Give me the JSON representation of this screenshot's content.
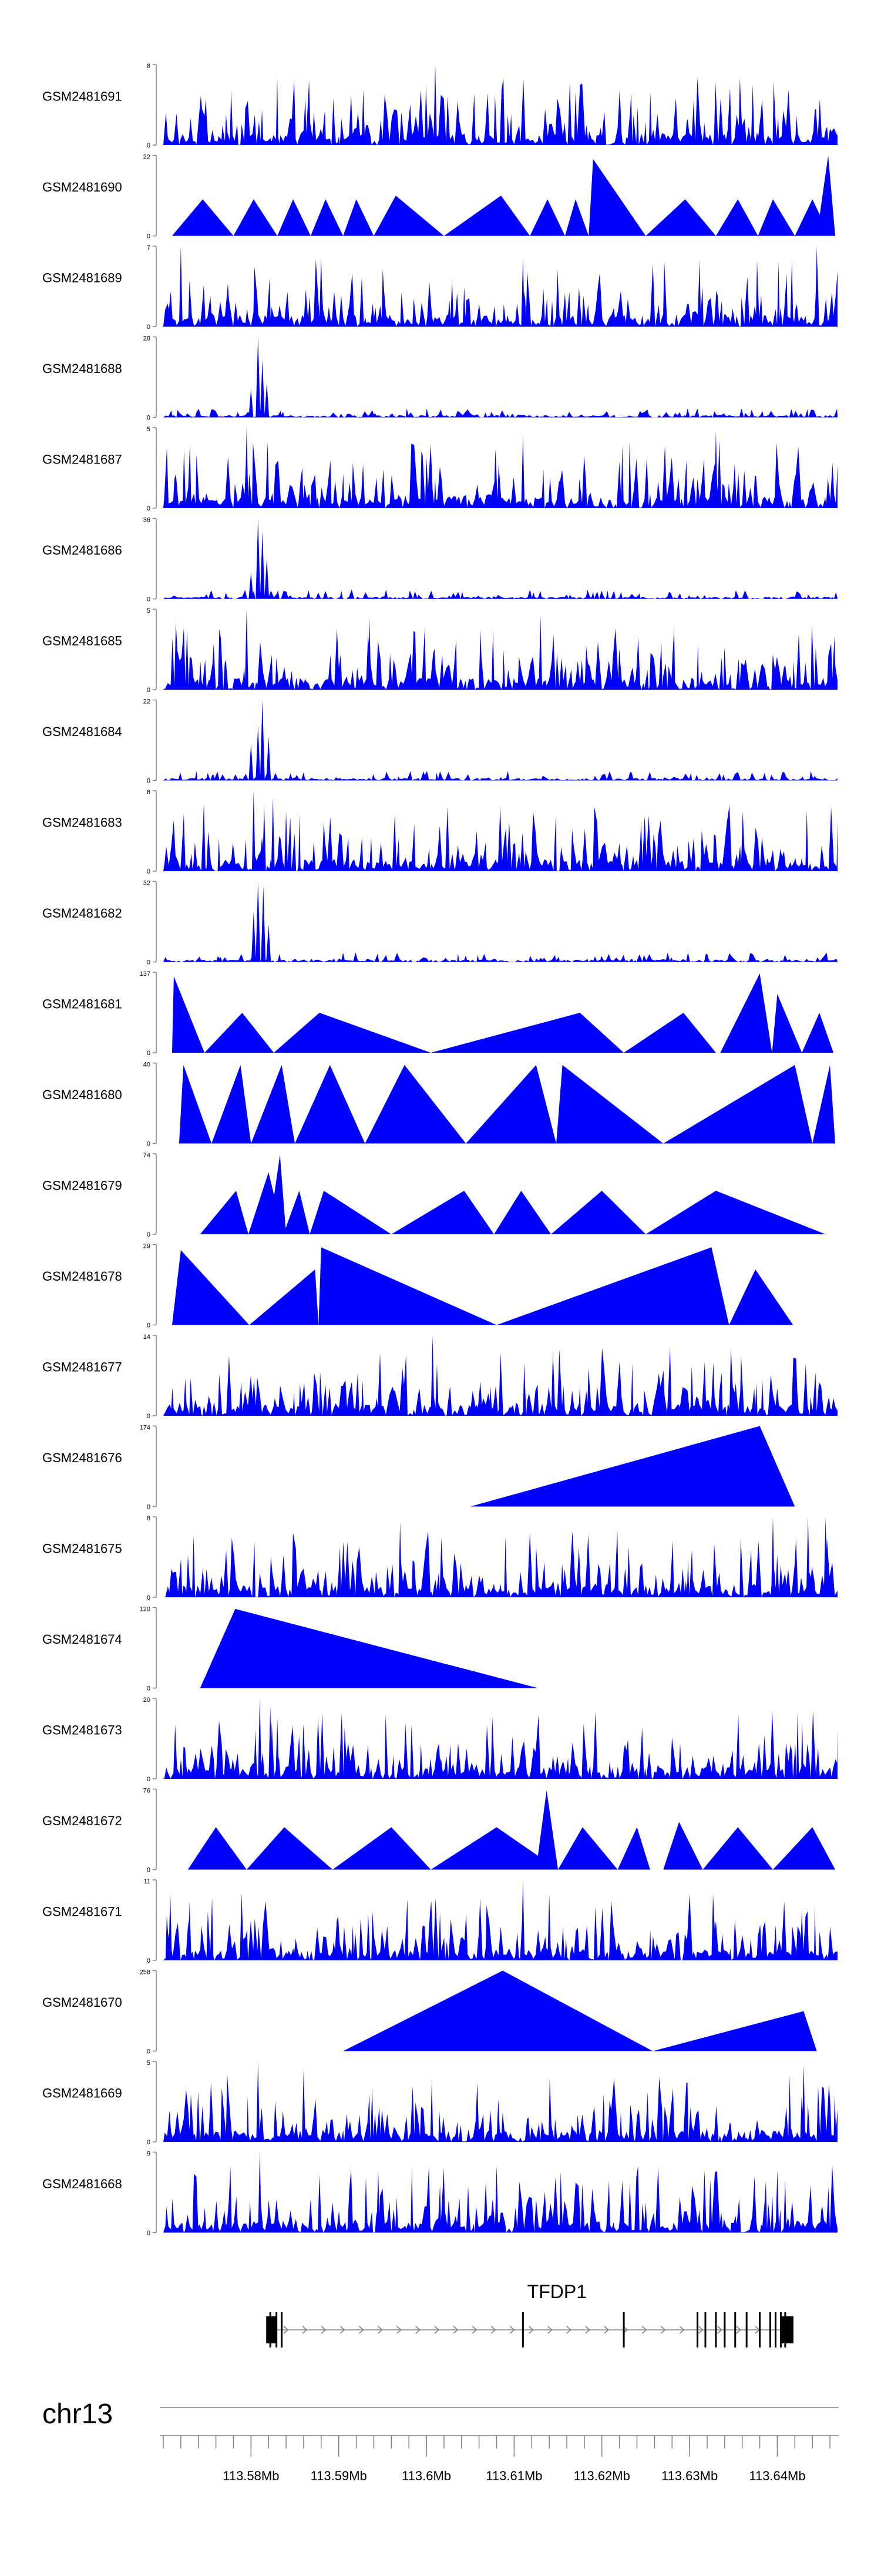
{
  "chart_data": {
    "type": "area",
    "title": "",
    "chromosome": "chr13",
    "gene": {
      "name": "TFDP1",
      "start_mb": 113.5823,
      "end_mb": 113.6415,
      "exons_mb": [
        113.5822,
        113.5829,
        113.5835,
        113.611,
        113.6225,
        113.6309,
        113.6318,
        113.633,
        113.634,
        113.6352,
        113.6365,
        113.638,
        113.6392,
        113.6398,
        113.6404,
        113.6409
      ]
    },
    "x_axis": {
      "range_mb": [
        113.57,
        113.647
      ],
      "ticks_mb": [
        113.58,
        113.59,
        113.6,
        113.61,
        113.62,
        113.63,
        113.64
      ],
      "tick_labels": [
        "113.58Mb",
        "113.59Mb",
        "113.6Mb",
        "113.61Mb",
        "113.62Mb",
        "113.63Mb",
        "113.64Mb"
      ],
      "minor_tick_step_mb": 0.002
    },
    "tracks": [
      {
        "name": "GSM2481691",
        "ymax": 8,
        "ymax_label": "8",
        "ymin_label": "0",
        "pattern": "dense",
        "peaks": [
          [
            113.601,
            8
          ],
          [
            113.5928,
            5.5
          ],
          [
            113.6372,
            6
          ]
        ]
      },
      {
        "name": "GSM2481690",
        "ymax": 22,
        "ymax_label": "22",
        "ymin_label": "0",
        "pattern": "triangles",
        "triangles": [
          [
            113.571,
            113.5745,
            113.578,
            10
          ],
          [
            113.578,
            113.5803,
            113.583,
            10
          ],
          [
            113.583,
            113.5848,
            113.5868,
            10
          ],
          [
            113.5868,
            113.5885,
            113.5905,
            10
          ],
          [
            113.5905,
            113.592,
            113.594,
            10
          ],
          [
            113.594,
            113.5965,
            113.602,
            11
          ],
          [
            113.602,
            113.6085,
            113.6118,
            11
          ],
          [
            113.6118,
            113.6138,
            113.6158,
            10
          ],
          [
            113.6158,
            113.617,
            113.6185,
            10
          ],
          [
            113.6185,
            113.619,
            113.625,
            21
          ],
          [
            113.625,
            113.6295,
            113.633,
            10
          ],
          [
            113.633,
            113.6355,
            113.6378,
            10
          ],
          [
            113.6378,
            113.6395,
            113.642,
            10
          ],
          [
            113.642,
            113.644,
            113.646,
            10
          ],
          [
            113.6445,
            113.6458,
            113.6466,
            22
          ]
        ]
      },
      {
        "name": "GSM2481689",
        "ymax": 7,
        "ymax_label": "7",
        "ymin_label": "0",
        "pattern": "dense",
        "peaks": [
          [
            113.572,
            7
          ],
          [
            113.588,
            6
          ],
          [
            113.611,
            6
          ],
          [
            113.6445,
            7
          ]
        ]
      },
      {
        "name": "GSM2481688",
        "ymax": 28,
        "ymax_label": "28",
        "ymin_label": "0",
        "pattern": "sparse",
        "peaks": [
          [
            113.5808,
            28
          ],
          [
            113.5813,
            20
          ],
          [
            113.5818,
            12
          ],
          [
            113.58,
            10
          ]
        ]
      },
      {
        "name": "GSM2481687",
        "ymax": 5,
        "ymax_label": "5",
        "ymin_label": "0",
        "pattern": "dense",
        "peaks": [
          [
            113.5795,
            5
          ],
          [
            113.611,
            4.5
          ],
          [
            113.633,
            4.8
          ]
        ]
      },
      {
        "name": "GSM2481686",
        "ymax": 36,
        "ymax_label": "36",
        "ymin_label": "0",
        "pattern": "sparse",
        "peaks": [
          [
            113.5808,
            36
          ],
          [
            113.5813,
            30
          ],
          [
            113.5818,
            18
          ],
          [
            113.58,
            12
          ]
        ]
      },
      {
        "name": "GSM2481685",
        "ymax": 5,
        "ymax_label": "5",
        "ymin_label": "0",
        "pattern": "dense",
        "peaks": [
          [
            113.5795,
            5
          ],
          [
            113.5935,
            4.5
          ],
          [
            113.613,
            4.6
          ]
        ]
      },
      {
        "name": "GSM2481684",
        "ymax": 22,
        "ymax_label": "22",
        "ymin_label": "0",
        "pattern": "sparse",
        "peaks": [
          [
            113.5813,
            22
          ],
          [
            113.5808,
            15
          ],
          [
            113.582,
            12
          ],
          [
            113.58,
            10
          ]
        ]
      },
      {
        "name": "GSM2481683",
        "ymax": 6,
        "ymax_label": "6",
        "ymin_label": "0",
        "pattern": "dense",
        "peaks": [
          [
            113.5803,
            6
          ],
          [
            113.5815,
            5
          ],
          [
            113.5825,
            5.5
          ],
          [
            113.584,
            4.5
          ]
        ]
      },
      {
        "name": "GSM2481682",
        "ymax": 32,
        "ymax_label": "32",
        "ymin_label": "0",
        "pattern": "sparse",
        "peaks": [
          [
            113.5808,
            32
          ],
          [
            113.5814,
            30
          ],
          [
            113.5803,
            20
          ],
          [
            113.582,
            15
          ]
        ]
      },
      {
        "name": "GSM2481681",
        "ymax": 137,
        "ymax_label": "137",
        "ymin_label": "0",
        "pattern": "triangles",
        "triangles": [
          [
            113.571,
            113.5712,
            113.5747,
            130
          ],
          [
            113.5747,
            113.579,
            113.5826,
            68
          ],
          [
            113.5826,
            113.5878,
            113.6005,
            68
          ],
          [
            113.6005,
            113.6175,
            113.6225,
            68
          ],
          [
            113.6225,
            113.6293,
            113.633,
            68
          ],
          [
            113.6335,
            113.638,
            113.6394,
            135
          ],
          [
            113.6394,
            113.64,
            113.6428,
            100
          ],
          [
            113.6428,
            113.6448,
            113.6464,
            68
          ]
        ]
      },
      {
        "name": "GSM2481680",
        "ymax": 40,
        "ymax_label": "40",
        "ymin_label": "0",
        "pattern": "triangles",
        "triangles": [
          [
            113.5718,
            113.5723,
            113.5755,
            39
          ],
          [
            113.5755,
            113.5788,
            113.58,
            39
          ],
          [
            113.58,
            113.5835,
            113.585,
            39
          ],
          [
            113.585,
            113.589,
            113.593,
            39
          ],
          [
            113.593,
            113.5975,
            113.6045,
            39
          ],
          [
            113.6045,
            113.6125,
            113.6148,
            39
          ],
          [
            113.6148,
            113.6155,
            113.627,
            39
          ],
          [
            113.627,
            113.642,
            113.644,
            39
          ],
          [
            113.644,
            113.646,
            113.6466,
            39
          ]
        ]
      },
      {
        "name": "GSM2481679",
        "ymax": 74,
        "ymax_label": "74",
        "ymin_label": "0",
        "pattern": "triangles",
        "triangles": [
          [
            113.5742,
            113.5783,
            113.5797,
            40
          ],
          [
            113.5797,
            113.582,
            113.5837,
            57
          ],
          [
            113.582,
            113.5833,
            113.584,
            73
          ],
          [
            113.5837,
            113.5855,
            113.5867,
            40
          ],
          [
            113.5867,
            113.5883,
            113.596,
            40
          ],
          [
            113.596,
            113.6043,
            113.6077,
            40
          ],
          [
            113.6077,
            113.6108,
            113.6142,
            40
          ],
          [
            113.6142,
            113.62,
            113.625,
            40
          ],
          [
            113.625,
            113.633,
            113.6455,
            40
          ]
        ]
      },
      {
        "name": "GSM2481678",
        "ymax": 29,
        "ymax_label": "29",
        "ymin_label": "0",
        "pattern": "triangles",
        "triangles": [
          [
            113.571,
            113.572,
            113.5798,
            27
          ],
          [
            113.5798,
            113.5873,
            113.5877,
            20
          ],
          [
            113.5877,
            113.588,
            113.608,
            28
          ],
          [
            113.608,
            113.6325,
            113.6345,
            28
          ],
          [
            113.6345,
            113.6375,
            113.6418,
            20
          ]
        ]
      },
      {
        "name": "GSM2481677",
        "ymax": 14,
        "ymax_label": "14",
        "ymin_label": "0",
        "pattern": "dense",
        "peaks": [
          [
            113.6007,
            14
          ],
          [
            113.6012,
            9
          ],
          [
            113.6073,
            5
          ]
        ]
      },
      {
        "name": "GSM2481676",
        "ymax": 174,
        "ymax_label": "174",
        "ymin_label": "0",
        "pattern": "triangles",
        "triangles": [
          [
            113.605,
            113.638,
            113.642,
            174
          ]
        ]
      },
      {
        "name": "GSM2481675",
        "ymax": 8,
        "ymax_label": "8",
        "ymin_label": "0",
        "pattern": "dense",
        "peaks": [
          [
            113.597,
            7.5
          ],
          [
            113.6395,
            8
          ],
          [
            113.6435,
            8
          ],
          [
            113.6455,
            8
          ]
        ]
      },
      {
        "name": "GSM2481674",
        "ymax": 120,
        "ymax_label": "120",
        "ymin_label": "0",
        "pattern": "triangles",
        "triangles": [
          [
            113.5742,
            113.5782,
            113.6127,
            118
          ]
        ]
      },
      {
        "name": "GSM2481673",
        "ymax": 20,
        "ymax_label": "20",
        "ymin_label": "0",
        "pattern": "dense",
        "peaks": [
          [
            113.581,
            20
          ],
          [
            113.5822,
            18
          ],
          [
            113.583,
            15
          ],
          [
            113.5805,
            12
          ]
        ]
      },
      {
        "name": "GSM2481672",
        "ymax": 76,
        "ymax_label": "76",
        "ymin_label": "0",
        "pattern": "triangles",
        "triangles": [
          [
            113.5728,
            113.576,
            113.5795,
            40
          ],
          [
            113.5795,
            113.5838,
            113.5893,
            40
          ],
          [
            113.5893,
            113.596,
            113.6005,
            40
          ],
          [
            113.6005,
            113.608,
            113.615,
            40
          ],
          [
            113.6125,
            113.6137,
            113.615,
            75
          ],
          [
            113.615,
            113.6178,
            113.6218,
            40
          ],
          [
            113.6218,
            113.624,
            113.6255,
            40
          ],
          [
            113.627,
            113.6288,
            113.6315,
            45
          ],
          [
            113.6315,
            113.6355,
            113.6395,
            40
          ],
          [
            113.6395,
            113.644,
            113.6466,
            40
          ]
        ]
      },
      {
        "name": "GSM2481671",
        "ymax": 11,
        "ymax_label": "11",
        "ymin_label": "0",
        "pattern": "dense",
        "peaks": [
          [
            113.611,
            11
          ],
          [
            113.614,
            9
          ],
          [
            113.573,
            8
          ],
          [
            113.6428,
            7
          ]
        ]
      },
      {
        "name": "GSM2481670",
        "ymax": 258,
        "ymax_label": "258",
        "ymin_label": "0",
        "pattern": "triangles",
        "triangles": [
          [
            113.5905,
            113.6087,
            113.6258,
            258
          ],
          [
            113.6258,
            113.643,
            113.6445,
            128
          ]
        ]
      },
      {
        "name": "GSM2481669",
        "ymax": 5,
        "ymax_label": "5",
        "ymin_label": "0",
        "pattern": "dense",
        "peaks": [
          [
            113.5808,
            5
          ],
          [
            113.586,
            4.5
          ],
          [
            113.643,
            4.8
          ]
        ]
      },
      {
        "name": "GSM2481668",
        "ymax": 9,
        "ymax_label": "9",
        "ymin_label": "0",
        "pattern": "dense",
        "peaks": [
          [
            113.581,
            9
          ],
          [
            113.5945,
            7
          ],
          [
            113.608,
            7.5
          ],
          [
            113.64,
            7
          ]
        ]
      }
    ],
    "fill_color": "#0000ff",
    "axis_color": "#808080"
  }
}
